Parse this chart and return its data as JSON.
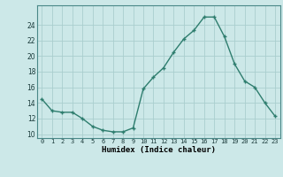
{
  "x": [
    0,
    1,
    2,
    3,
    4,
    5,
    6,
    7,
    8,
    9,
    10,
    11,
    12,
    13,
    14,
    15,
    16,
    17,
    18,
    19,
    20,
    21,
    22,
    23
  ],
  "y": [
    14.5,
    13.0,
    12.8,
    12.8,
    12.0,
    11.0,
    10.5,
    10.3,
    10.3,
    10.8,
    15.8,
    17.3,
    18.5,
    20.5,
    22.2,
    23.3,
    25.0,
    25.0,
    22.5,
    19.0,
    16.8,
    16.0,
    14.0,
    12.3
  ],
  "xlabel": "Humidex (Indice chaleur)",
  "ylim": [
    9.5,
    26.5
  ],
  "xlim": [
    -0.5,
    23.5
  ],
  "yticks": [
    10,
    12,
    14,
    16,
    18,
    20,
    22,
    24
  ],
  "xticks": [
    0,
    1,
    2,
    3,
    4,
    5,
    6,
    7,
    8,
    9,
    10,
    11,
    12,
    13,
    14,
    15,
    16,
    17,
    18,
    19,
    20,
    21,
    22,
    23
  ],
  "line_color": "#2e7d6e",
  "marker_color": "#2e7d6e",
  "bg_color": "#cce8e8",
  "grid_color": "#aacece"
}
